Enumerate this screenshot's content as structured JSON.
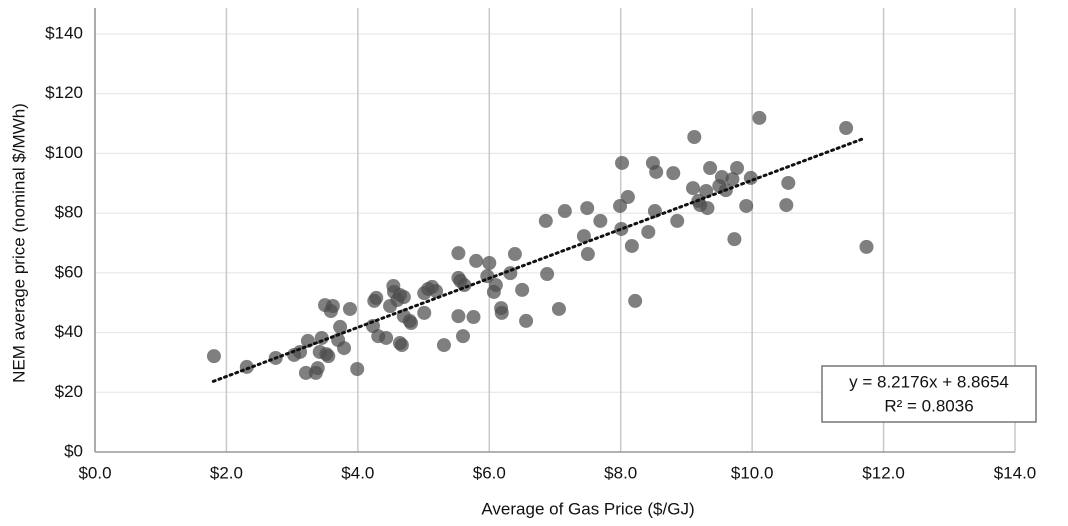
{
  "chart_data": {
    "type": "scatter",
    "x_label": "Average of Gas Price ($/GJ)",
    "y_label": "NEM average price (nominal $/MWh)",
    "color": "#4d4d4d",
    "grid": true,
    "xlim": [
      0,
      14
    ],
    "ylim": [
      0,
      140
    ],
    "xticks": [
      {
        "value": 0,
        "label": "$0.0"
      },
      {
        "value": 2,
        "label": "$2.0"
      },
      {
        "value": 4,
        "label": "$4.0"
      },
      {
        "value": 6,
        "label": "$6.0"
      },
      {
        "value": 8,
        "label": "$8.0"
      },
      {
        "value": 10,
        "label": "$10.0"
      },
      {
        "value": 12,
        "label": "$12.0"
      },
      {
        "value": 14,
        "label": "$14.0"
      }
    ],
    "yticks": [
      {
        "value": 0,
        "label": "$0"
      },
      {
        "value": 20,
        "label": "$20"
      },
      {
        "value": 40,
        "label": "$40"
      },
      {
        "value": 60,
        "label": "$60"
      },
      {
        "value": 80,
        "label": "$80"
      },
      {
        "value": 100,
        "label": "$100"
      },
      {
        "value": 120,
        "label": "$120"
      },
      {
        "value": 140,
        "label": "$140"
      }
    ],
    "x": [
      1.81,
      2.31,
      2.75,
      3.03,
      3.12,
      3.24,
      3.21,
      3.36,
      3.39,
      3.42,
      3.45,
      3.52,
      3.55,
      3.5,
      3.59,
      3.62,
      3.7,
      3.73,
      3.79,
      3.88,
      3.99,
      4.23,
      4.25,
      4.28,
      4.31,
      4.43,
      4.49,
      4.54,
      4.55,
      4.6,
      4.64,
      4.64,
      4.67,
      4.7,
      4.7,
      4.79,
      4.81,
      5.01,
      5.01,
      5.07,
      5.13,
      5.19,
      5.31,
      5.53,
      5.53,
      5.56,
      5.53,
      5.6,
      5.62,
      5.76,
      5.8,
      5.97,
      6.0,
      6.07,
      6.1,
      6.18,
      6.19,
      6.32,
      6.39,
      6.5,
      6.56,
      6.86,
      6.88,
      7.06,
      7.15,
      7.44,
      7.49,
      7.5,
      7.69,
      7.99,
      8.01,
      8.02,
      8.11,
      8.17,
      8.22,
      8.42,
      8.49,
      8.52,
      8.54,
      8.8,
      8.86,
      9.1,
      9.12,
      9.18,
      9.21,
      9.3,
      9.32,
      9.36,
      9.5,
      9.54,
      9.6,
      9.7,
      9.73,
      9.77,
      9.91,
      9.98,
      10.11,
      10.52,
      10.55,
      11.43,
      11.74
    ],
    "values": [
      32.1,
      28.5,
      31.5,
      32.5,
      33.5,
      37.2,
      26.5,
      26.5,
      28.1,
      33.5,
      38.2,
      32.8,
      32.1,
      49.2,
      47.2,
      48.9,
      37.5,
      41.9,
      34.8,
      47.9,
      27.8,
      42.2,
      50.6,
      51.6,
      38.8,
      38.2,
      48.9,
      55.6,
      53.6,
      50.9,
      52.6,
      36.5,
      35.8,
      51.9,
      45.5,
      43.9,
      43.2,
      46.6,
      53.2,
      54.6,
      55.3,
      53.9,
      35.8,
      66.6,
      58.3,
      57.3,
      45.5,
      38.8,
      55.9,
      45.2,
      64.0,
      58.9,
      63.3,
      53.6,
      55.9,
      48.2,
      46.6,
      59.9,
      66.3,
      54.3,
      43.9,
      77.4,
      59.6,
      47.9,
      80.7,
      72.3,
      81.7,
      66.3,
      77.4,
      82.4,
      74.7,
      96.8,
      85.4,
      69.0,
      50.6,
      73.7,
      96.8,
      80.7,
      93.8,
      93.4,
      77.4,
      88.4,
      105.5,
      84.1,
      82.7,
      87.4,
      81.7,
      95.1,
      89.1,
      92.1,
      87.7,
      91.4,
      71.3,
      95.1,
      82.4,
      91.8,
      111.9,
      82.7,
      90.1,
      108.5,
      68.7
    ],
    "trendline": {
      "equation": "y = 8.2176x + 8.8654",
      "r_squared": "R² = 0.8036",
      "slope": 8.2176,
      "intercept": 8.8654,
      "x": [
        1.8,
        11.7
      ],
      "color": "#111111"
    }
  }
}
